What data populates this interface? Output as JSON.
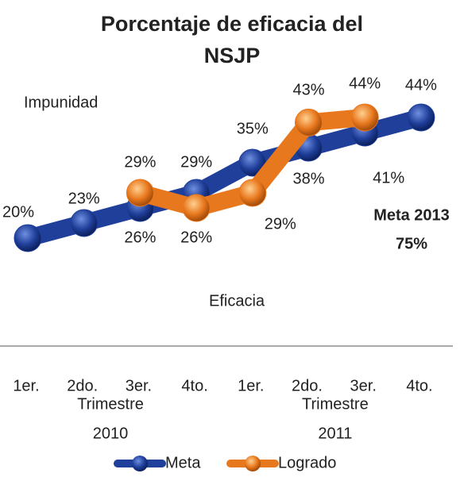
{
  "chart_data": {
    "type": "line",
    "title": "Porcentaje de eficacia del",
    "subtitle": "NSJP",
    "annotations": [
      "Impunidad",
      "Eficacia",
      "Meta 2013",
      "75%"
    ],
    "categories": [
      "1er.",
      "2do.",
      "3er.",
      "4to.",
      "1er.",
      "2do.",
      "3er.",
      "4to."
    ],
    "groups": [
      {
        "name": "Trimestre",
        "year": "2010"
      },
      {
        "name": "Trimestre",
        "year": "2011"
      }
    ],
    "series": [
      {
        "name": "Meta",
        "color": "#1f3f9a",
        "values": [
          20,
          23,
          26,
          29,
          35,
          38,
          41,
          44
        ],
        "value_labels": [
          "20%",
          "23%",
          "26%",
          "29%",
          "35%",
          "38%",
          "41%",
          "44%"
        ]
      },
      {
        "name": "Logrado",
        "color": "#e8781e",
        "values": [
          null,
          null,
          29,
          26,
          29,
          43,
          44,
          null
        ],
        "value_labels": [
          null,
          null,
          "29%",
          "26%",
          "29%",
          "43%",
          "44%",
          null
        ]
      }
    ]
  }
}
